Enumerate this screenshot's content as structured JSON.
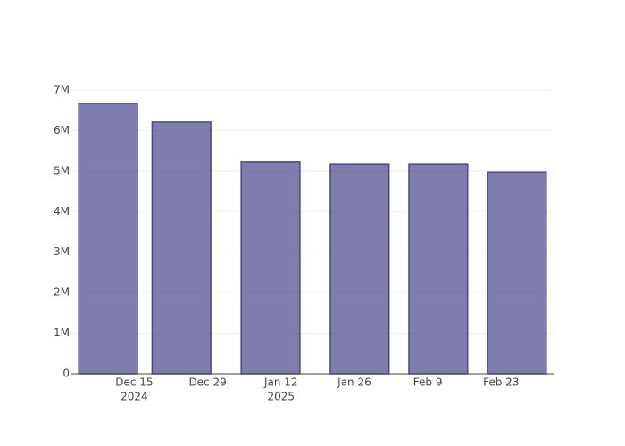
{
  "chart_data": {
    "type": "bar",
    "x": [
      "2024-12-10",
      "2024-12-24",
      "2025-01-10",
      "2025-01-27",
      "2025-02-11",
      "2025-02-26"
    ],
    "values": [
      6670000,
      6210000,
      5220000,
      5170000,
      5170000,
      4970000
    ],
    "color": "#48468c",
    "line_color": "#4b4a82",
    "xlim": [
      "2024-12-03",
      "2025-03-05"
    ],
    "xticks": [
      {
        "value": "2024-12-15",
        "label": "Dec 15",
        "year": "2024"
      },
      {
        "value": "2024-12-29",
        "label": "Dec 29"
      },
      {
        "value": "2025-01-12",
        "label": "Jan 12",
        "year": "2025"
      },
      {
        "value": "2025-01-26",
        "label": "Jan 26"
      },
      {
        "value": "2025-02-09",
        "label": "Feb 9"
      },
      {
        "value": "2025-02-23",
        "label": "Feb 23"
      }
    ],
    "ylim": [
      0,
      7000000
    ],
    "yticks": [
      0,
      {
        "value": 1000000,
        "label": "1M"
      },
      {
        "value": 2000000,
        "label": "2M"
      },
      {
        "value": 3000000,
        "label": "3M"
      },
      {
        "value": 4000000,
        "label": "4M"
      },
      {
        "value": 5000000,
        "label": "5M"
      },
      {
        "value": 6000000,
        "label": "6M"
      },
      {
        "value": 7000000,
        "label": "7M"
      }
    ],
    "grid": true
  }
}
